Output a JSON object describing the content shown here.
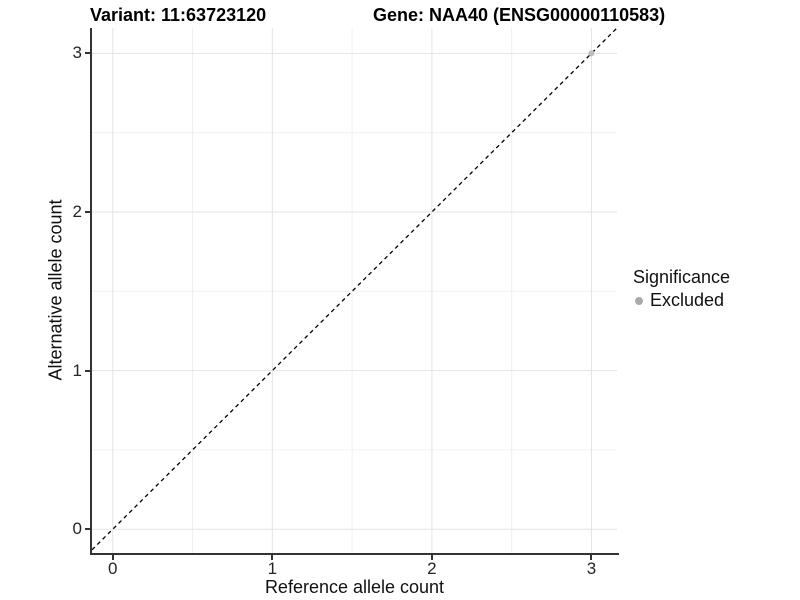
{
  "titles": {
    "variant": "Variant: 11:63723120",
    "gene": "Gene: NAA40 (ENSG00000110583)"
  },
  "chart_data": {
    "type": "scatter",
    "xlabel": "Reference allele count",
    "ylabel": "Alternative allele count",
    "xlim": [
      -0.13,
      3.16
    ],
    "ylim": [
      -0.15,
      3.16
    ],
    "x_ticks": [
      0,
      1,
      2,
      3
    ],
    "y_ticks": [
      0,
      1,
      2,
      3
    ],
    "x_minor_ticks": [
      0.5,
      1.5,
      2.5
    ],
    "y_minor_ticks": [
      0.5,
      1.5,
      2.5
    ],
    "grid": true,
    "points": [
      {
        "x": 3,
        "y": 3,
        "significance": "Excluded",
        "color": "#bdbdbd",
        "radius": 3
      }
    ],
    "reference_line": {
      "slope": 1,
      "intercept": 0,
      "style": "dashed",
      "color": "#000000"
    },
    "legend": {
      "title": "Significance",
      "position": "right",
      "items": [
        {
          "label": "Excluded",
          "color": "#aaaaaa"
        }
      ]
    }
  },
  "colors": {
    "background": "#ffffff",
    "axis_line": "#333333",
    "grid_major": "#e3e3e3",
    "grid_minor": "#f0f0f0",
    "tick_text": "#262626",
    "title_text": "#000000"
  }
}
